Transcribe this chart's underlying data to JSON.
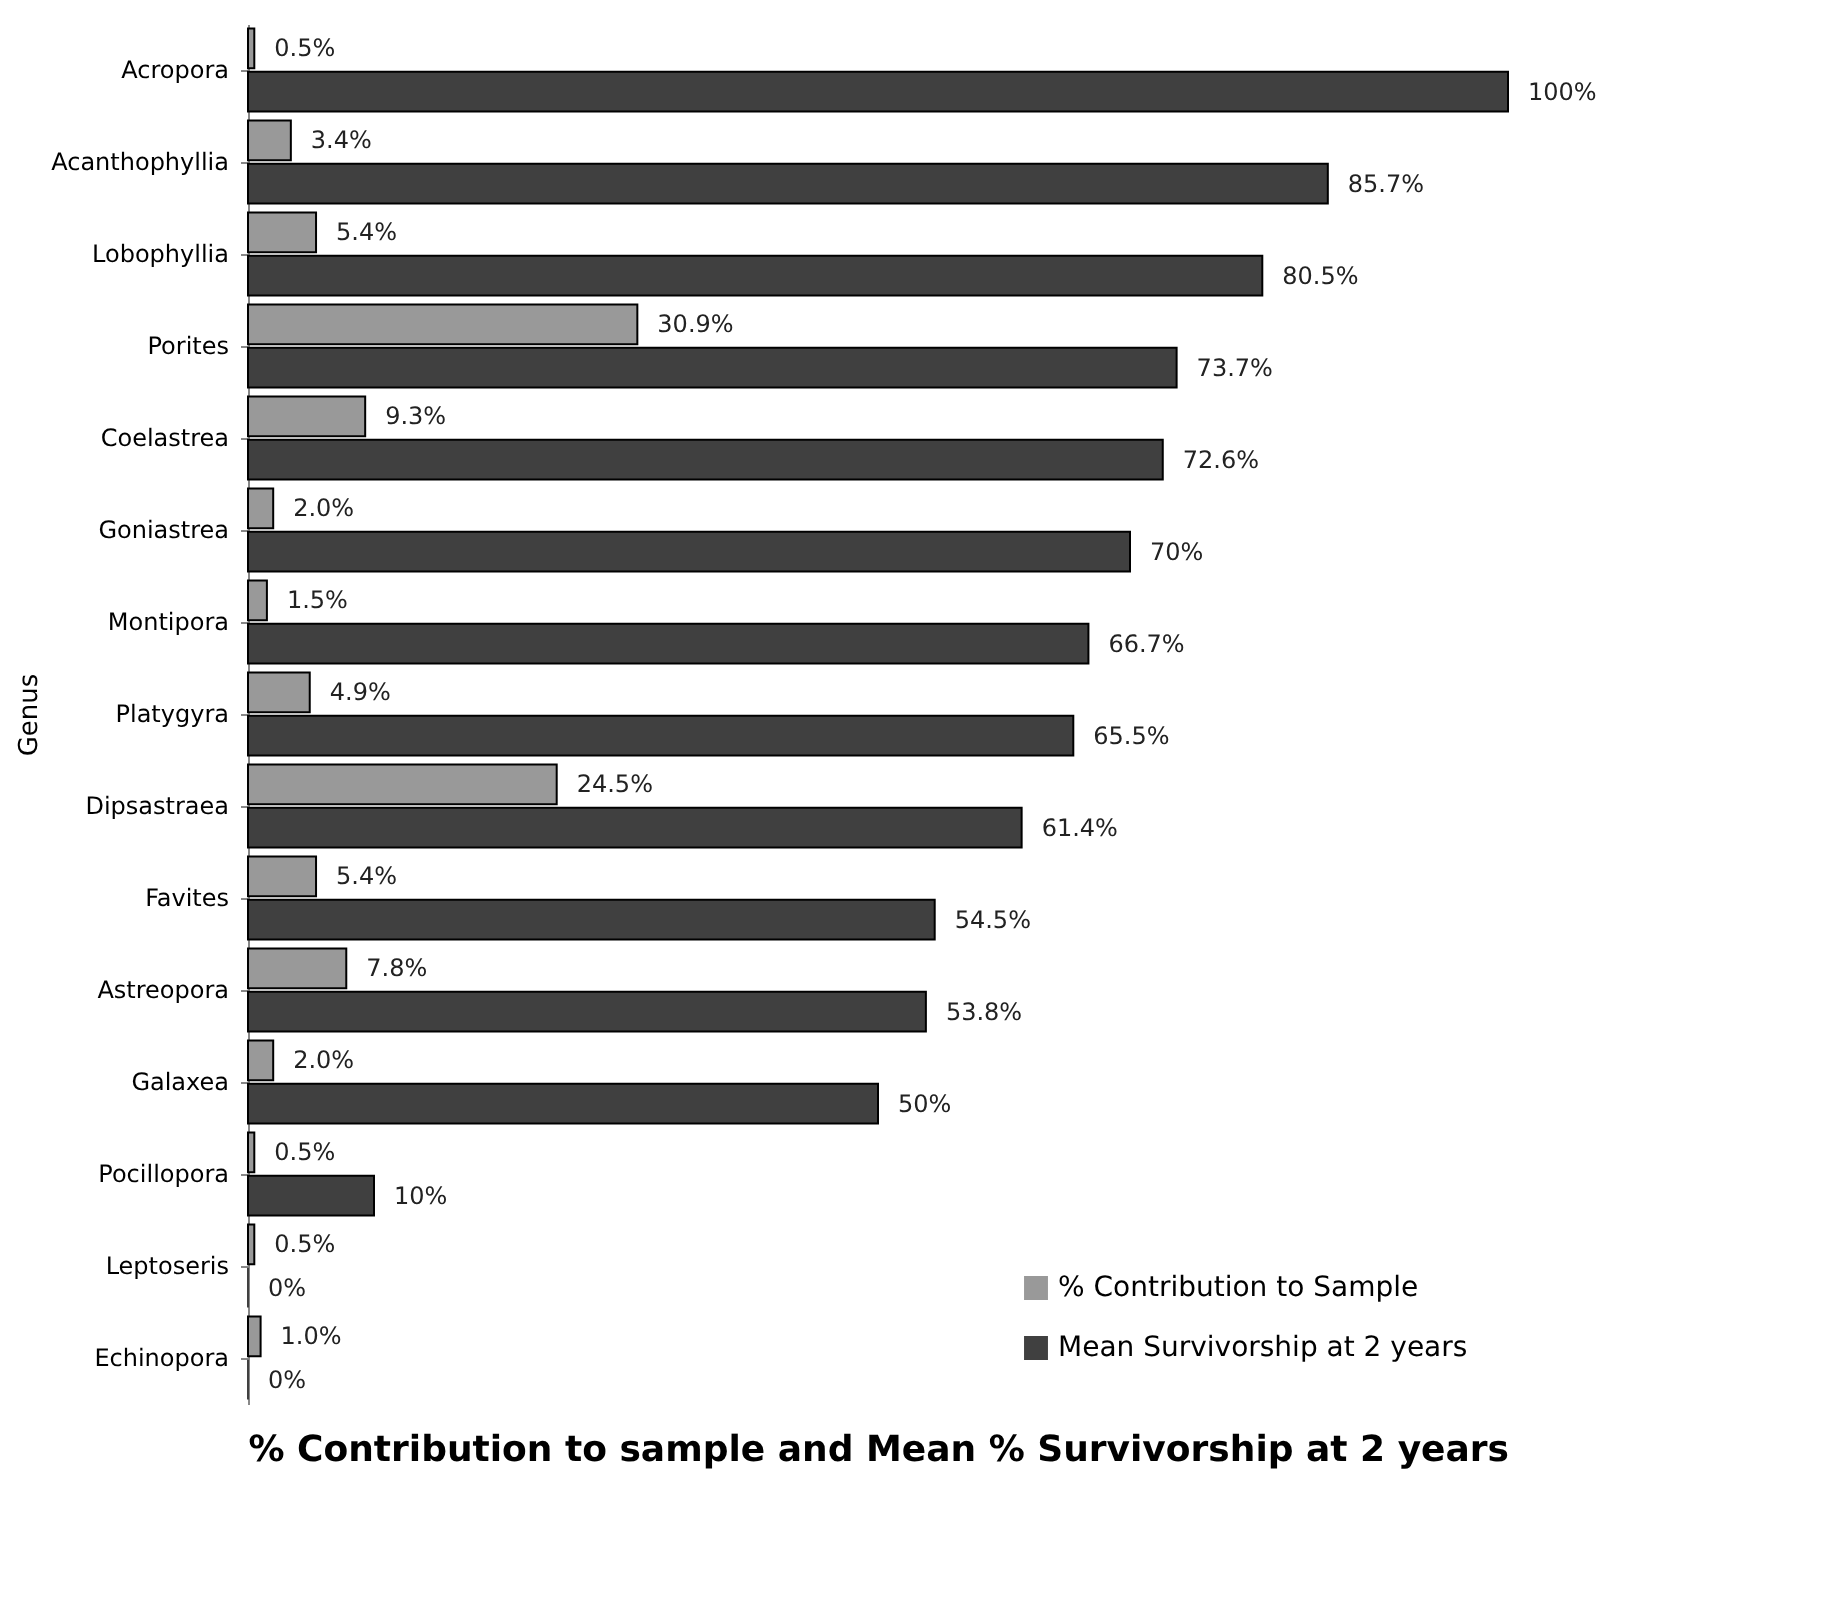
{
  "chart_data": {
    "type": "bar",
    "orientation": "horizontal",
    "xlabel": "% Contribution to sample and Mean % Survivorship at 2 years",
    "ylabel": "Genus",
    "categories": [
      "Acropora",
      "Acanthophyllia",
      "Lobophyllia",
      "Porites",
      "Coelastrea",
      "Goniastrea",
      "Montipora",
      "Platygyra",
      "Dipsastraea",
      "Favites",
      "Astreopora",
      "Galaxea",
      "Pocillopora",
      "Leptoseris",
      "Echinopora"
    ],
    "series": [
      {
        "name": "% Contribution to Sample",
        "color": "#999999",
        "values": [
          0.5,
          3.4,
          5.4,
          30.9,
          9.3,
          2.0,
          1.5,
          4.9,
          24.5,
          5.4,
          7.8,
          2.0,
          0.5,
          0.5,
          1.0
        ],
        "value_labels": [
          "0.5%",
          "3.4%",
          "5.4%",
          "30.9%",
          "9.3%",
          "2.0%",
          "1.5%",
          "4.9%",
          "24.5%",
          "5.4%",
          "7.8%",
          "2.0%",
          "0.5%",
          "0.5%",
          "1.0%"
        ]
      },
      {
        "name": "Mean Survivorship at 2 years",
        "color": "#404040",
        "values": [
          100,
          85.7,
          80.5,
          73.7,
          72.6,
          70,
          66.7,
          65.5,
          61.4,
          54.5,
          53.8,
          50,
          10,
          0,
          0
        ],
        "value_labels": [
          "100%",
          "85.7%",
          "80.5%",
          "73.7%",
          "72.6%",
          "70%",
          "66.7%",
          "65.5%",
          "61.4%",
          "54.5%",
          "53.8%",
          "50%",
          "10%",
          "0%",
          "0%"
        ]
      }
    ],
    "legend": "bottom right",
    "grid": false
  }
}
